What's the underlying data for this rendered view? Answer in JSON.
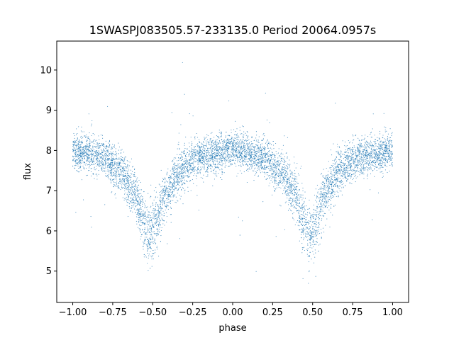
{
  "chart_data": {
    "type": "scatter",
    "title": "1SWASPJ083505.57-233135.0 Period 20064.0957s",
    "xlabel": "phase",
    "ylabel": "flux",
    "xlim": [
      -1.1,
      1.1
    ],
    "ylim": [
      4.22,
      10.72
    ],
    "xticks": [
      -1.0,
      -0.75,
      -0.5,
      -0.25,
      0.0,
      0.25,
      0.5,
      0.75,
      1.0
    ],
    "xtick_labels": [
      "−1.00",
      "−0.75",
      "−0.50",
      "−0.25",
      "0.00",
      "0.25",
      "0.50",
      "0.75",
      "1.00"
    ],
    "yticks": [
      5,
      6,
      7,
      8,
      9,
      10
    ],
    "ytick_labels": [
      "5",
      "6",
      "7",
      "8",
      "9",
      "10"
    ],
    "grid": false,
    "marker_color": "#1f77b4",
    "light_curve_profile": {
      "description_points": [
        {
          "phase": -1.0,
          "flux": 7.95
        },
        {
          "phase": -0.9,
          "flux": 7.95
        },
        {
          "phase": -0.8,
          "flux": 7.8
        },
        {
          "phase": -0.7,
          "flux": 7.5
        },
        {
          "phase": -0.62,
          "flux": 7.0
        },
        {
          "phase": -0.55,
          "flux": 6.2
        },
        {
          "phase": -0.52,
          "flux": 5.8
        },
        {
          "phase": -0.48,
          "flux": 6.2
        },
        {
          "phase": -0.42,
          "flux": 6.9
        },
        {
          "phase": -0.33,
          "flux": 7.5
        },
        {
          "phase": -0.2,
          "flux": 7.85
        },
        {
          "phase": 0.0,
          "flux": 8.0
        },
        {
          "phase": 0.2,
          "flux": 7.8
        },
        {
          "phase": 0.3,
          "flux": 7.5
        },
        {
          "phase": 0.38,
          "flux": 7.0
        },
        {
          "phase": 0.45,
          "flux": 6.2
        },
        {
          "phase": 0.48,
          "flux": 5.8
        },
        {
          "phase": 0.52,
          "flux": 6.2
        },
        {
          "phase": 0.58,
          "flux": 6.9
        },
        {
          "phase": 0.67,
          "flux": 7.5
        },
        {
          "phase": 0.8,
          "flux": 7.85
        },
        {
          "phase": 1.0,
          "flux": 8.0
        }
      ],
      "scatter_sigma": 0.22,
      "n_points": 7000,
      "outlier_fraction": 0.015
    }
  }
}
